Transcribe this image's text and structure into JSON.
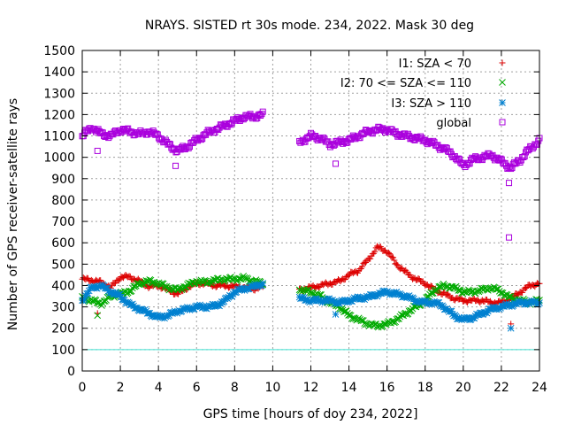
{
  "chart_data": {
    "type": "scatter",
    "title": "NRAYS. SISTED rt 30s mode. 234, 2022. Mask 30 deg",
    "xlabel": "GPS time [hours of doy 234, 2022]",
    "ylabel": "Number of GPS receiver-satellite rays",
    "xlim": [
      0,
      24
    ],
    "ylim": [
      0,
      1500
    ],
    "xticks": [
      "0",
      "2",
      "4",
      "6",
      "8",
      "10",
      "12",
      "14",
      "16",
      "18",
      "20",
      "22",
      "24"
    ],
    "yticks": [
      "0",
      "100",
      "200",
      "300",
      "400",
      "500",
      "600",
      "700",
      "800",
      "900",
      "1000",
      "1100",
      "1200",
      "1300",
      "1400",
      "1500"
    ],
    "grid": true,
    "legend_position": "top-right",
    "reference_line": {
      "y": 100,
      "color": "#40e0d0"
    },
    "gaps": [
      [
        9.5,
        11.4
      ]
    ],
    "series": [
      {
        "name": "I1: SZA < 70",
        "marker": "plus",
        "color": "#dd0000",
        "x": [
          0,
          0.5,
          1,
          1.5,
          2,
          2.5,
          3,
          3.5,
          4,
          4.5,
          5,
          5.5,
          6,
          6.5,
          7,
          7.5,
          8,
          8.5,
          9,
          9.5,
          11.4,
          12,
          12.5,
          13,
          13.5,
          14,
          14.5,
          15,
          15.5,
          16,
          16.5,
          17,
          17.5,
          18,
          18.5,
          19,
          19.5,
          20,
          20.5,
          21,
          21.5,
          22,
          22.5,
          23,
          23.5,
          24
        ],
        "y": [
          430,
          425,
          415,
          390,
          440,
          440,
          420,
          395,
          400,
          380,
          360,
          390,
          410,
          410,
          400,
          400,
          395,
          390,
          385,
          395,
          380,
          390,
          400,
          410,
          420,
          450,
          470,
          520,
          580,
          560,
          500,
          460,
          430,
          410,
          380,
          360,
          340,
          330,
          330,
          330,
          320,
          320,
          340,
          370,
          400,
          410
        ]
      },
      {
        "name": "I2: 70 <= SZA <= 110",
        "marker": "cross",
        "color": "#00aa00",
        "x": [
          0,
          0.5,
          1,
          1.5,
          2,
          2.5,
          3,
          3.5,
          4,
          4.5,
          5,
          5.5,
          6,
          6.5,
          7,
          7.5,
          8,
          8.5,
          9,
          9.5,
          11.4,
          12,
          12.5,
          13,
          13.5,
          14,
          14.5,
          15,
          15.5,
          16,
          16.5,
          17,
          17.5,
          18,
          18.5,
          19,
          19.5,
          20,
          20.5,
          21,
          21.5,
          22,
          22.5,
          23,
          23.5,
          24
        ],
        "y": [
          340,
          330,
          315,
          350,
          360,
          375,
          410,
          420,
          410,
          390,
          380,
          400,
          420,
          415,
          425,
          430,
          430,
          435,
          420,
          410,
          380,
          370,
          350,
          320,
          300,
          260,
          240,
          220,
          210,
          220,
          240,
          270,
          300,
          330,
          380,
          400,
          390,
          370,
          370,
          380,
          390,
          370,
          340,
          330,
          320,
          330
        ]
      },
      {
        "name": "I3: SZA > 110",
        "marker": "star",
        "color": "#0080d0",
        "x": [
          0,
          0.5,
          1,
          1.5,
          2,
          2.5,
          3,
          3.5,
          4,
          4.5,
          5,
          5.5,
          6,
          6.5,
          7,
          7.5,
          8,
          8.5,
          9,
          9.5,
          11.4,
          12,
          12.5,
          13,
          13.5,
          14,
          14.5,
          15,
          15.5,
          16,
          16.5,
          17,
          17.5,
          18,
          18.5,
          19,
          19.5,
          20,
          20.5,
          21,
          21.5,
          22,
          22.5,
          23,
          23.5,
          24
        ],
        "y": [
          330,
          390,
          400,
          370,
          350,
          310,
          290,
          270,
          250,
          260,
          280,
          290,
          300,
          300,
          305,
          330,
          370,
          385,
          395,
          410,
          340,
          330,
          330,
          330,
          320,
          330,
          340,
          345,
          360,
          370,
          360,
          350,
          330,
          320,
          320,
          300,
          260,
          240,
          250,
          270,
          290,
          300,
          310,
          320,
          320,
          320
        ]
      },
      {
        "name": "global",
        "marker": "square",
        "color": "#aa00dd",
        "x": [
          0,
          0.5,
          1,
          1.5,
          2,
          2.5,
          3,
          3.5,
          4,
          4.5,
          5,
          5.5,
          6,
          6.5,
          7,
          7.5,
          8,
          8.5,
          9,
          9.5,
          11.4,
          12,
          12.5,
          13,
          13.5,
          14,
          14.5,
          15,
          15.5,
          16,
          16.5,
          17,
          17.5,
          18,
          18.5,
          19,
          19.5,
          20,
          20.5,
          21,
          21.5,
          22,
          22.5,
          23,
          23.5,
          24
        ],
        "y": [
          1100,
          1140,
          1110,
          1100,
          1130,
          1120,
          1110,
          1120,
          1100,
          1060,
          1030,
          1050,
          1080,
          1110,
          1130,
          1150,
          1170,
          1190,
          1190,
          1200,
          1070,
          1100,
          1090,
          1060,
          1070,
          1080,
          1100,
          1120,
          1130,
          1130,
          1110,
          1100,
          1090,
          1080,
          1060,
          1040,
          1010,
          960,
          990,
          1000,
          1010,
          980,
          950,
          990,
          1040,
          1080
        ]
      }
    ],
    "outliers": [
      {
        "series": "I1: SZA < 70",
        "x": [
          0.8,
          22.5
        ],
        "y": [
          270,
          220
        ]
      },
      {
        "series": "I2: 70 <= SZA <= 110",
        "x": [
          0.8
        ],
        "y": [
          260
        ]
      },
      {
        "series": "I3: SZA > 110",
        "x": [
          13.3,
          22.5
        ],
        "y": [
          265,
          200
        ]
      },
      {
        "series": "global",
        "x": [
          0.8,
          4.9,
          13.3,
          22.4,
          22.4
        ],
        "y": [
          1030,
          960,
          970,
          880,
          625
        ]
      }
    ]
  }
}
